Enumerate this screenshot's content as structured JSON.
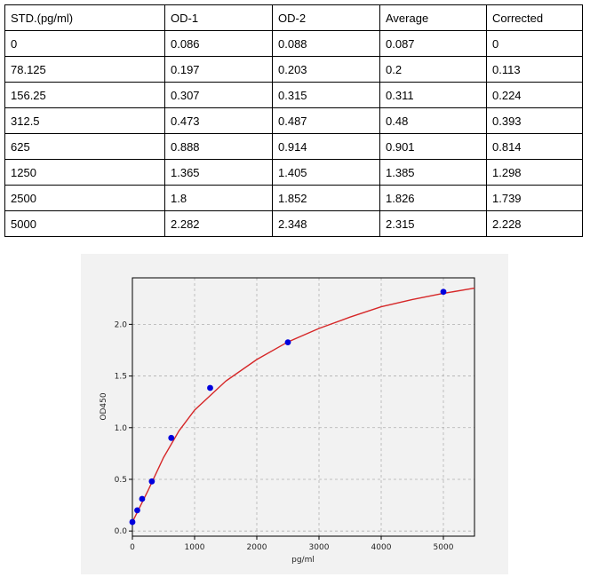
{
  "table": {
    "headers": [
      "STD.(pg/ml)",
      "OD-1",
      "OD-2",
      "Average",
      "Corrected"
    ],
    "rows": [
      [
        "0",
        "0.086",
        "0.088",
        "0.087",
        "0"
      ],
      [
        "78.125",
        "0.197",
        "0.203",
        "0.2",
        "0.113"
      ],
      [
        "156.25",
        "0.307",
        "0.315",
        "0.311",
        "0.224"
      ],
      [
        "312.5",
        "0.473",
        "0.487",
        "0.48",
        "0.393"
      ],
      [
        "625",
        "0.888",
        "0.914",
        "0.901",
        "0.814"
      ],
      [
        "1250",
        "1.365",
        "1.405",
        "1.385",
        "1.298"
      ],
      [
        "2500",
        "1.8",
        "1.852",
        "1.826",
        "1.739"
      ],
      [
        "5000",
        "2.282",
        "2.348",
        "2.315",
        "2.228"
      ]
    ]
  },
  "chart_data": {
    "type": "scatter",
    "xlabel": "pg/ml",
    "ylabel": "OD450",
    "xlim": [
      0,
      5500
    ],
    "ylim": [
      -0.05,
      2.45
    ],
    "xticks": [
      0,
      1000,
      2000,
      3000,
      4000,
      5000
    ],
    "yticks": [
      0.0,
      0.5,
      1.0,
      1.5,
      2.0
    ],
    "ytick_labels": [
      "0.0",
      "0.5",
      "1.0",
      "1.5",
      "2.0"
    ],
    "grid": true,
    "points": {
      "x": [
        0,
        78.125,
        156.25,
        312.5,
        625,
        1250,
        2500,
        5000
      ],
      "y": [
        0.087,
        0.2,
        0.311,
        0.48,
        0.901,
        1.385,
        1.826,
        2.315
      ]
    },
    "fit_curve": {
      "x": [
        0,
        250,
        500,
        750,
        1000,
        1500,
        2000,
        2500,
        3000,
        3500,
        4000,
        4500,
        5000,
        5500
      ],
      "y": [
        0.087,
        0.39,
        0.71,
        0.97,
        1.17,
        1.45,
        1.66,
        1.83,
        1.96,
        2.07,
        2.17,
        2.24,
        2.3,
        2.35
      ]
    },
    "colors": {
      "points": "#0000dd",
      "curve": "#d62728",
      "grid": "#b0b0b0"
    }
  }
}
